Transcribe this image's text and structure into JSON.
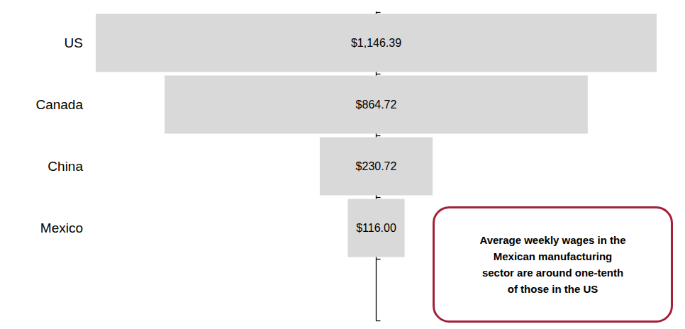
{
  "chart_data": {
    "type": "bar",
    "orientation": "horizontal",
    "categories": [
      "US",
      "Canada",
      "China",
      "Mexico",
      null
    ],
    "values": [
      1146.39,
      864.72,
      230.72,
      116.0,
      null
    ],
    "value_labels": [
      "$1,146.39",
      "$864.72",
      "$230.72",
      "$116.00",
      null
    ],
    "color": "#d9d9d9",
    "data_labels": true,
    "tick_labels": "y",
    "grid": false,
    "annotation": "Average weekly wages in the\nMexican manufacturing\nsector are around one-tenth\nof those in the US"
  }
}
